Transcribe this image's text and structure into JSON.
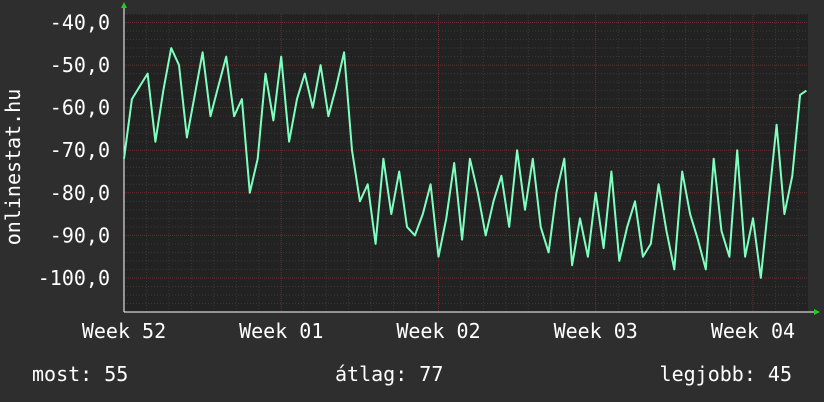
{
  "chart_data": {
    "type": "line",
    "ylabel": "onlinestat.hu",
    "ylim": [
      -108,
      -38
    ],
    "yticks": [
      -40,
      -50,
      -60,
      -70,
      -80,
      -90,
      -100
    ],
    "ytick_labels": [
      "-40,0",
      "-50,0",
      "-60,0",
      "-70,0",
      "-80,0",
      "-90,0",
      "-100,0"
    ],
    "xlim": [
      0,
      4.35
    ],
    "xticks": [
      0,
      1,
      2,
      3,
      4
    ],
    "xtick_labels": [
      "Week 52",
      "Week 01",
      "Week 02",
      "Week 03",
      "Week 04"
    ],
    "grid": true,
    "series": [
      {
        "color": "#7fffbf",
        "x": [
          0.0,
          0.05,
          0.1,
          0.15,
          0.2,
          0.25,
          0.3,
          0.35,
          0.4,
          0.45,
          0.5,
          0.55,
          0.6,
          0.65,
          0.7,
          0.75,
          0.8,
          0.85,
          0.9,
          0.95,
          1.0,
          1.05,
          1.1,
          1.15,
          1.2,
          1.25,
          1.3,
          1.35,
          1.4,
          1.45,
          1.5,
          1.55,
          1.6,
          1.65,
          1.7,
          1.75,
          1.8,
          1.85,
          1.9,
          1.95,
          2.0,
          2.05,
          2.1,
          2.15,
          2.2,
          2.25,
          2.3,
          2.35,
          2.4,
          2.45,
          2.5,
          2.55,
          2.6,
          2.65,
          2.7,
          2.75,
          2.8,
          2.85,
          2.9,
          2.95,
          3.0,
          3.05,
          3.1,
          3.15,
          3.2,
          3.25,
          3.3,
          3.35,
          3.4,
          3.45,
          3.5,
          3.55,
          3.6,
          3.65,
          3.7,
          3.75,
          3.8,
          3.85,
          3.9,
          3.95,
          4.0,
          4.05,
          4.1,
          4.15,
          4.2,
          4.25,
          4.3,
          4.34
        ],
        "values": [
          -72,
          -58,
          -55,
          -52,
          -68,
          -56,
          -46,
          -50,
          -67,
          -57,
          -47,
          -62,
          -55,
          -48,
          -62,
          -58,
          -80,
          -72,
          -52,
          -63,
          -48,
          -68,
          -58,
          -52,
          -60,
          -50,
          -62,
          -55,
          -47,
          -70,
          -82,
          -78,
          -92,
          -72,
          -85,
          -75,
          -88,
          -90,
          -85,
          -78,
          -95,
          -86,
          -73,
          -91,
          -72,
          -80,
          -90,
          -82,
          -76,
          -88,
          -70,
          -84,
          -72,
          -88,
          -94,
          -80,
          -72,
          -97,
          -86,
          -95,
          -80,
          -93,
          -75,
          -96,
          -88,
          -82,
          -95,
          -92,
          -78,
          -89,
          -98,
          -75,
          -85,
          -91,
          -98,
          -72,
          -89,
          -95,
          -70,
          -95,
          -86,
          -100,
          -82,
          -64,
          -85,
          -76,
          -57,
          -56
        ]
      }
    ]
  },
  "footer": {
    "now": "most: 55",
    "avg": "átlag: 77",
    "best": "legjobb: 45"
  }
}
